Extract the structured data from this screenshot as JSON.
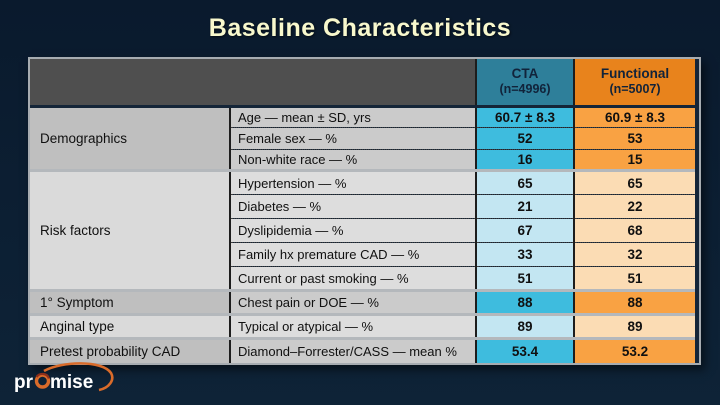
{
  "slide": {
    "title": "Baseline Characteristics"
  },
  "table": {
    "header": {
      "cta": {
        "label": "CTA",
        "n": "(n=4996)"
      },
      "functional": {
        "label": "Functional",
        "n": "(n=5007)"
      }
    },
    "groups": [
      {
        "label": "Demographics",
        "shade": "strong",
        "rows": [
          {
            "label": "Age — mean ± SD, yrs",
            "cta": "60.7 ± 8.3",
            "functional": "60.9 ± 8.3"
          },
          {
            "label": "Female sex — %",
            "cta": "52",
            "functional": "53"
          },
          {
            "label": "Non-white race — %",
            "cta": "16",
            "functional": "15"
          }
        ]
      },
      {
        "label": "Risk factors",
        "shade": "light",
        "rows": [
          {
            "label": "Hypertension — %",
            "cta": "65",
            "functional": "65"
          },
          {
            "label": "Diabetes — %",
            "cta": "21",
            "functional": "22"
          },
          {
            "label": "Dyslipidemia — %",
            "cta": "67",
            "functional": "68"
          },
          {
            "label": "Family hx premature CAD — %",
            "cta": "33",
            "functional": "32"
          },
          {
            "label": "Current or past smoking — %",
            "cta": "51",
            "functional": "51"
          }
        ]
      },
      {
        "label": "1°  Symptom",
        "shade": "strong",
        "rows": [
          {
            "label": "Chest pain or DOE — %",
            "cta": "88",
            "functional": "88"
          }
        ]
      },
      {
        "label": "Anginal type",
        "shade": "light",
        "rows": [
          {
            "label": "Typical or atypical — %",
            "cta": "89",
            "functional": "89"
          }
        ]
      },
      {
        "label": "Pretest probability CAD",
        "shade": "strong",
        "rows": [
          {
            "label": "Diamond–Forrester/CASS — mean %",
            "cta": "53.4",
            "functional": "53.2"
          }
        ]
      }
    ]
  },
  "logo": {
    "text_pre": "pr",
    "text_post": "mise"
  },
  "colors": {
    "background": "#0C1F33",
    "title": "#F8F8CD",
    "header_left": "#4F4F4F",
    "cta_header": "#2E7F9A",
    "functional_header": "#E8831C",
    "cta_strong": "#3EBCDE",
    "cta_light": "#C3E6F2",
    "functional_strong": "#F9A243",
    "functional_light": "#FBDCB4",
    "group_strong": "#BFBFBF",
    "group_light": "#DADADA",
    "label_strong": "#CBCBCB",
    "label_light": "#DDDDDD",
    "logo_orange": "#D96B2A"
  }
}
